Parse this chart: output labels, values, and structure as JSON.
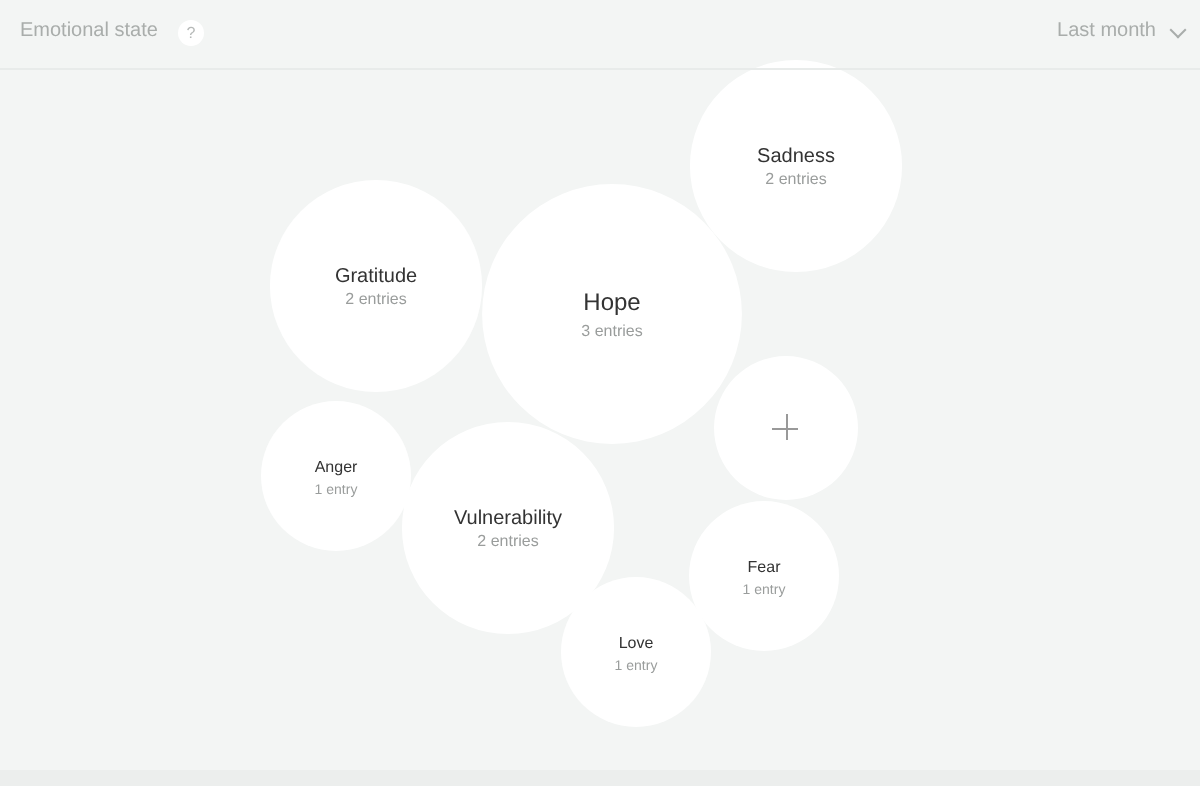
{
  "chart_data": {
    "type": "other",
    "title": "Emotional state",
    "annotations": [
      "Last month",
      "?"
    ],
    "categories": [
      "Sadness",
      "Gratitude",
      "Hope",
      "Anger",
      "Vulnerability",
      "Fear",
      "Love"
    ],
    "values": [
      2,
      2,
      3,
      1,
      2,
      1,
      1
    ],
    "value_labels": [
      "2 entries",
      "2 entries",
      "3 entries",
      "1 entry",
      "2 entries",
      "1 entry",
      "1 entry"
    ]
  }
}
